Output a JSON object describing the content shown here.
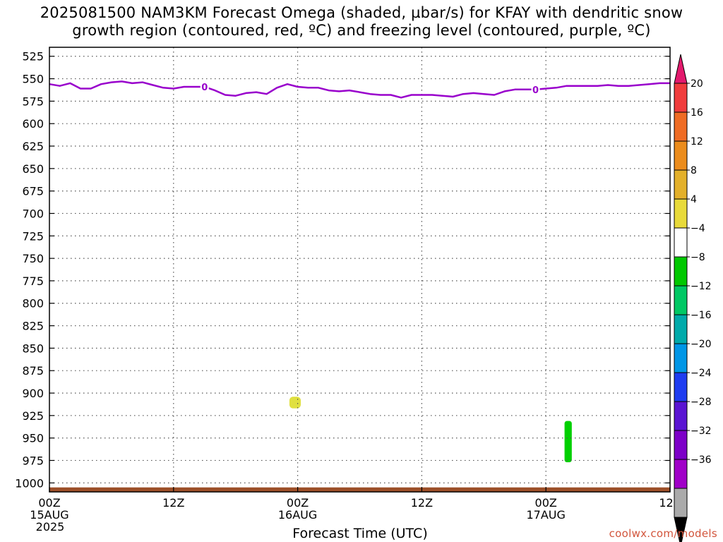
{
  "title": {
    "line1": "2025081500 NAM3KM Forecast Omega (shaded, µbar/s) for KFAY with dendritic snow",
    "line2": "growth region (contoured, red, ºC) and freezing level (contoured, purple, ºC)"
  },
  "credit": "coolwx.com/models",
  "chart_data": {
    "type": "heatmap",
    "title": "2025081500 NAM3KM Forecast Omega (shaded, µbar/s) for KFAY with dendritic snow growth region (contoured, red, ºC) and freezing level (contoured, purple, ºC)",
    "xlabel": "Forecast Time (UTC)",
    "ylabel": "",
    "x_unit": "forecast hour",
    "xlim": [
      0,
      60
    ],
    "ylim": [
      1010,
      515
    ],
    "y_ticks": [
      525,
      550,
      575,
      600,
      625,
      650,
      675,
      700,
      725,
      750,
      775,
      800,
      825,
      850,
      875,
      900,
      925,
      950,
      975,
      1000
    ],
    "x_ticks": [
      {
        "hour": 0,
        "lines": [
          "00Z",
          "15AUG",
          "2025"
        ]
      },
      {
        "hour": 12,
        "lines": [
          "12Z"
        ]
      },
      {
        "hour": 24,
        "lines": [
          "00Z",
          "16AUG"
        ]
      },
      {
        "hour": 36,
        "lines": [
          "12Z"
        ]
      },
      {
        "hour": 48,
        "lines": [
          "00Z",
          "17AUG"
        ]
      },
      {
        "hour": 60,
        "lines": [
          "12Z"
        ]
      }
    ],
    "grid": true,
    "freezing_level": {
      "label": "0",
      "color": "#9900cc",
      "label_hours": [
        15,
        47
      ],
      "x": [
        0,
        1,
        2,
        3,
        4,
        5,
        6,
        7,
        8,
        9,
        10,
        11,
        12,
        13,
        14,
        15,
        16,
        17,
        18,
        19,
        20,
        21,
        22,
        23,
        24,
        25,
        26,
        27,
        28,
        29,
        30,
        31,
        32,
        33,
        34,
        35,
        36,
        37,
        38,
        39,
        40,
        41,
        42,
        43,
        44,
        45,
        46,
        47,
        48,
        49,
        50,
        51,
        52,
        53,
        54,
        55,
        56,
        57,
        58,
        59,
        60
      ],
      "y": [
        556,
        558,
        555,
        561,
        561,
        556,
        554,
        553,
        555,
        554,
        557,
        560,
        561,
        559,
        559,
        559,
        563,
        568,
        569,
        566,
        565,
        567,
        560,
        556,
        559,
        560,
        560,
        563,
        564,
        563,
        565,
        567,
        568,
        568,
        571,
        568,
        568,
        568,
        569,
        570,
        567,
        566,
        567,
        568,
        564,
        562,
        562,
        562,
        561,
        560,
        558,
        558,
        558,
        558,
        557,
        558,
        558,
        557,
        556,
        555,
        555
      ]
    },
    "shaded_regions": [
      {
        "omega_range": "4 to 8",
        "color": "#e0e040",
        "hour_range": [
          23.2,
          24.3
        ],
        "pressure_range": [
          904,
          917
        ]
      },
      {
        "omega_range": "-8 to -4",
        "color": "#00d000",
        "hour_range": [
          49.8,
          50.5
        ],
        "pressure_range": [
          931,
          977
        ]
      }
    ],
    "terrain": {
      "color": "#9c4f28",
      "surface_pressure": 1005
    },
    "colorbar": {
      "labels": [
        "20",
        "16",
        "12",
        "8",
        "4",
        "-4",
        "-8",
        "-12",
        "-16",
        "-20",
        "-24",
        "-28",
        "-32",
        "-36"
      ],
      "colors": [
        "#e31a6d",
        "#f03c3c",
        "#ef6c24",
        "#eb8c1c",
        "#e3b02a",
        "#e8da3a",
        "#ffffff",
        "#00c800",
        "#00c864",
        "#00aaaa",
        "#0096e6",
        "#1e3cf0",
        "#5a14d2",
        "#7d00c8",
        "#a000c8",
        "#aaaaaa",
        "#000000"
      ]
    }
  }
}
